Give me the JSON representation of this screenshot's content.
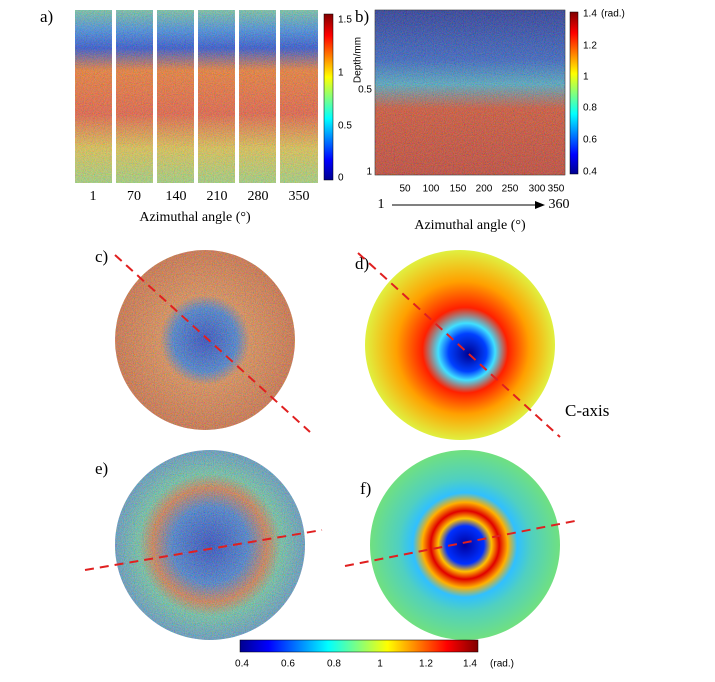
{
  "panels": {
    "a": {
      "label": "a)",
      "x_ticks": [
        "1",
        "70",
        "140",
        "210",
        "280",
        "350"
      ],
      "x_label": "Azimuthal angle (°)",
      "colorbar_ticks": [
        "1.5",
        "1",
        "0.5",
        "0"
      ]
    },
    "b": {
      "label": "b)",
      "y_label": "Depth/mm",
      "y_ticks": [
        "0.5",
        "1"
      ],
      "x_ticks": [
        "50",
        "100",
        "150",
        "200",
        "250",
        "300",
        "350"
      ],
      "arrow_start": "1",
      "arrow_end": "360",
      "x_label": "Azimuthal angle (°)",
      "colorbar_ticks": [
        "1.4",
        "1.2",
        "1",
        "0.8",
        "0.6",
        "0.4"
      ],
      "colorbar_unit": "(rad.)"
    },
    "c": {
      "label": "c)"
    },
    "d": {
      "label": "d)",
      "annotation": "C-axis"
    },
    "e": {
      "label": "e)"
    },
    "f": {
      "label": "f)"
    }
  },
  "colorbar": {
    "ticks": [
      "0.4",
      "0.6",
      "0.8",
      "1",
      "1.2",
      "1.4"
    ],
    "unit": "(rad.)"
  }
}
